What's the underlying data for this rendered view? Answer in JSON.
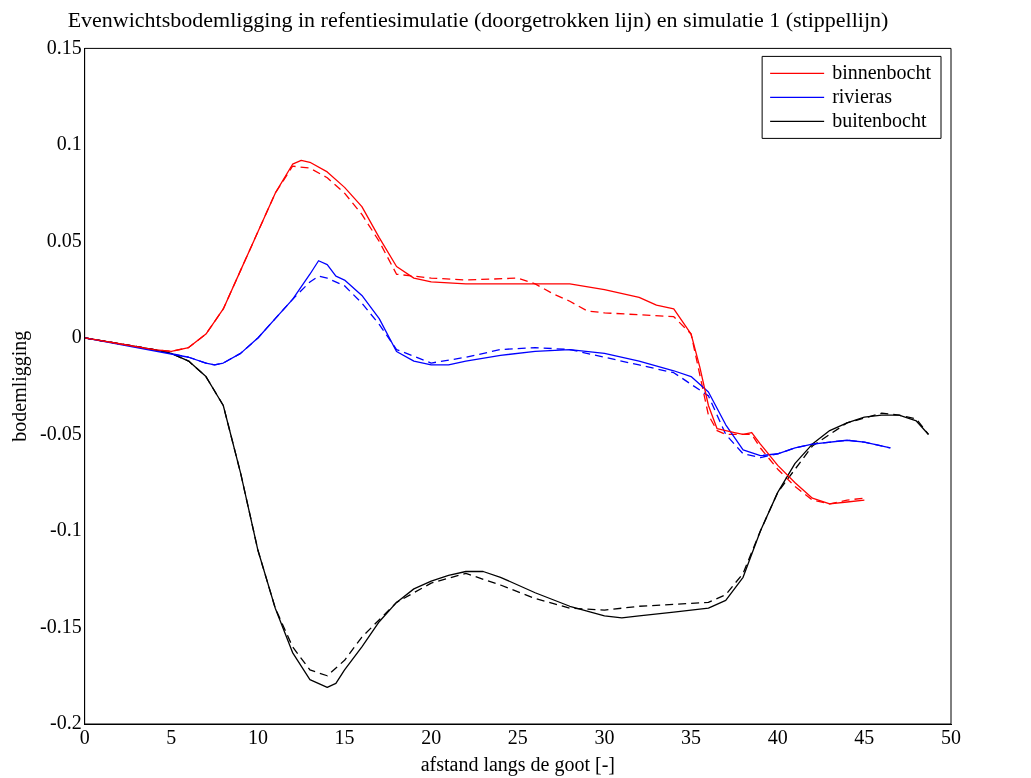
{
  "chart_data": {
    "type": "line",
    "title": "Evenwichtsbodemligging in refentiesimulatie (doorgetrokken lijn) en simulatie 1 (stippellijn)",
    "xlabel": "afstand langs de goot [-]",
    "ylabel": "bodemligging",
    "xlim": [
      0,
      50
    ],
    "xticks": [
      0,
      5,
      10,
      15,
      20,
      25,
      30,
      35,
      40,
      45,
      50
    ],
    "ylim": [
      -0.2,
      0.15
    ],
    "yticks": [
      -0.2,
      -0.15,
      -0.1,
      -0.05,
      0,
      0.05,
      0.1,
      0.15
    ],
    "grid": false,
    "legend": "top right",
    "marker": "none",
    "series": [
      {
        "name": "binnenbocht",
        "color": "#ff0000",
        "line_style": "solid",
        "x": [
          0,
          2,
          4,
          5,
          6,
          7,
          8,
          9,
          10,
          11,
          12,
          12.5,
          13,
          14,
          15,
          16,
          17,
          18,
          19,
          20,
          22,
          25,
          28,
          30,
          32,
          33,
          34,
          35,
          35.5,
          36,
          36.5,
          37.5,
          38,
          38.5,
          39,
          40,
          41,
          42,
          43,
          44,
          45
        ],
        "values": [
          0,
          -0.003,
          -0.006,
          -0.007,
          -0.005,
          0.002,
          0.015,
          0.035,
          0.055,
          0.075,
          0.09,
          0.092,
          0.091,
          0.086,
          0.078,
          0.068,
          0.052,
          0.037,
          0.031,
          0.029,
          0.028,
          0.028,
          0.028,
          0.025,
          0.021,
          0.017,
          0.015,
          0.002,
          -0.015,
          -0.035,
          -0.047,
          -0.049,
          -0.05,
          -0.049,
          -0.055,
          -0.066,
          -0.075,
          -0.083,
          -0.086,
          -0.085,
          -0.084
        ]
      },
      {
        "name": "rivieras",
        "color": "#0000ff",
        "line_style": "solid",
        "x": [
          0,
          6,
          7,
          7.5,
          8,
          9,
          10,
          11,
          12,
          13,
          13.5,
          14,
          14.5,
          15,
          16,
          17,
          18,
          19,
          20,
          21,
          22,
          24,
          26,
          28,
          30,
          32,
          34,
          35,
          36,
          37,
          38,
          39,
          40,
          41,
          42,
          44,
          45,
          46.5
        ],
        "values": [
          0,
          -0.01,
          -0.013,
          -0.014,
          -0.013,
          -0.008,
          0,
          0.01,
          0.02,
          0.033,
          0.04,
          0.038,
          0.032,
          0.03,
          0.022,
          0.01,
          -0.007,
          -0.012,
          -0.014,
          -0.014,
          -0.012,
          -0.009,
          -0.007,
          -0.006,
          -0.008,
          -0.012,
          -0.017,
          -0.02,
          -0.028,
          -0.045,
          -0.058,
          -0.061,
          -0.06,
          -0.057,
          -0.055,
          -0.053,
          -0.054,
          -0.057
        ]
      },
      {
        "name": "buitenbocht",
        "color": "#000000",
        "line_style": "solid",
        "x": [
          0,
          4,
          5,
          6,
          7,
          8,
          9,
          10,
          11,
          12,
          13,
          14,
          14.5,
          15,
          16,
          17,
          18,
          19,
          20,
          21,
          22,
          23,
          24,
          26,
          28,
          30,
          31,
          32,
          34,
          36,
          37,
          38,
          39,
          40,
          41,
          42,
          43,
          44,
          45,
          46,
          47,
          48,
          48.7
        ],
        "values": [
          0,
          -0.006,
          -0.008,
          -0.012,
          -0.02,
          -0.035,
          -0.07,
          -0.11,
          -0.14,
          -0.163,
          -0.177,
          -0.181,
          -0.179,
          -0.172,
          -0.16,
          -0.147,
          -0.137,
          -0.13,
          -0.126,
          -0.123,
          -0.121,
          -0.121,
          -0.124,
          -0.132,
          -0.139,
          -0.144,
          -0.145,
          -0.144,
          -0.142,
          -0.14,
          -0.136,
          -0.124,
          -0.1,
          -0.08,
          -0.065,
          -0.055,
          -0.048,
          -0.044,
          -0.041,
          -0.04,
          -0.04,
          -0.043,
          -0.05
        ]
      },
      {
        "color": "#ff0000",
        "line_style": "dashed",
        "x": [
          0,
          2,
          4,
          5,
          6,
          7,
          8,
          9,
          10,
          11,
          12,
          13,
          14,
          15,
          16,
          17,
          18,
          20,
          22,
          25,
          26,
          27,
          28,
          29,
          30,
          32,
          34,
          35,
          36,
          36.5,
          37,
          38,
          38.5,
          39,
          40,
          41,
          42,
          43,
          44,
          45
        ],
        "values": [
          0,
          -0.003,
          -0.006,
          -0.007,
          -0.005,
          0.002,
          0.015,
          0.035,
          0.055,
          0.075,
          0.089,
          0.088,
          0.083,
          0.075,
          0.064,
          0.05,
          0.033,
          0.031,
          0.03,
          0.031,
          0.028,
          0.023,
          0.019,
          0.014,
          0.013,
          0.012,
          0.011,
          0.002,
          -0.04,
          -0.048,
          -0.05,
          -0.05,
          -0.05,
          -0.057,
          -0.068,
          -0.077,
          -0.084,
          -0.086,
          -0.084,
          -0.083
        ]
      },
      {
        "color": "#0000ff",
        "line_style": "dashed",
        "x": [
          0,
          4,
          6,
          7,
          7.5,
          8,
          9,
          10,
          11,
          12,
          13,
          13.5,
          14,
          15,
          16,
          17,
          18,
          20,
          22,
          24,
          26,
          28,
          30,
          32,
          34,
          36,
          37,
          38,
          39,
          40,
          41,
          42,
          44,
          45,
          46.5
        ],
        "values": [
          0,
          -0.006,
          -0.01,
          -0.013,
          -0.014,
          -0.013,
          -0.008,
          0,
          0.01,
          0.02,
          0.029,
          0.032,
          0.031,
          0.027,
          0.018,
          0.007,
          -0.006,
          -0.013,
          -0.01,
          -0.006,
          -0.005,
          -0.006,
          -0.01,
          -0.014,
          -0.018,
          -0.03,
          -0.05,
          -0.06,
          -0.062,
          -0.06,
          -0.057,
          -0.055,
          -0.053,
          -0.054,
          -0.057
        ]
      },
      {
        "color": "#000000",
        "line_style": "dashed",
        "x": [
          0,
          4,
          5,
          6,
          7,
          8,
          9,
          10,
          11,
          12,
          13,
          14,
          15,
          16,
          18,
          20,
          22,
          24,
          26,
          28,
          30,
          32,
          34,
          36,
          37,
          38,
          39,
          40,
          42,
          44,
          46,
          47,
          48,
          48.7
        ],
        "values": [
          0,
          -0.006,
          -0.008,
          -0.012,
          -0.02,
          -0.035,
          -0.07,
          -0.11,
          -0.14,
          -0.16,
          -0.172,
          -0.175,
          -0.167,
          -0.155,
          -0.137,
          -0.127,
          -0.122,
          -0.128,
          -0.135,
          -0.14,
          -0.141,
          -0.139,
          -0.138,
          -0.137,
          -0.133,
          -0.122,
          -0.1,
          -0.08,
          -0.056,
          -0.044,
          -0.039,
          -0.04,
          -0.042,
          -0.05
        ]
      }
    ]
  }
}
